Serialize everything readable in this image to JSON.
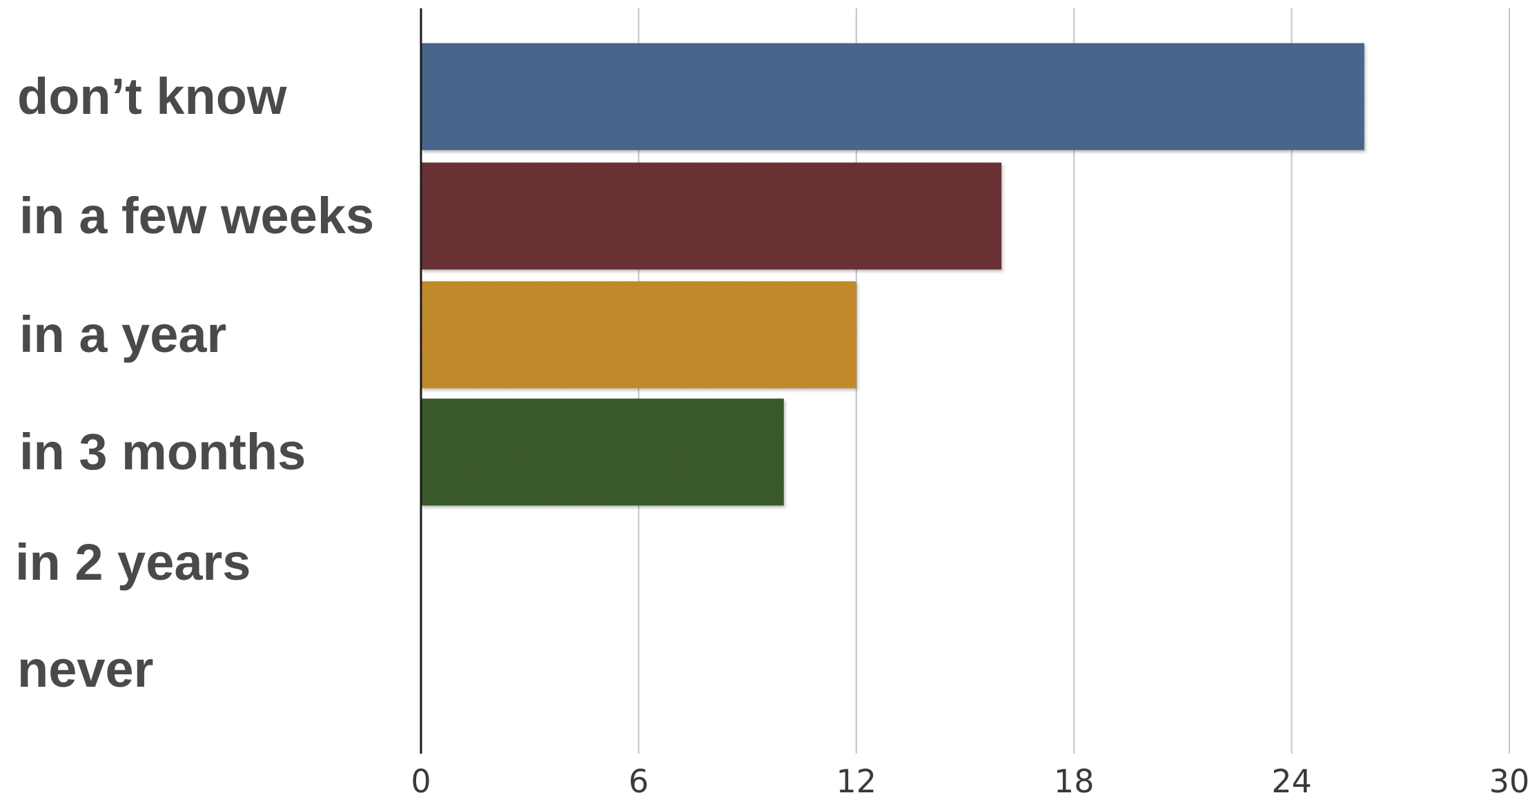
{
  "chart_data": {
    "type": "bar",
    "orientation": "horizontal",
    "title": "",
    "xlabel": "",
    "ylabel": "",
    "categories": [
      "don’t know",
      "in a few weeks",
      "in a year",
      "in 3 months",
      "in 2 years",
      "never"
    ],
    "values": [
      26,
      16,
      12,
      10,
      0,
      0
    ],
    "colors": [
      "#4d6a92",
      "#6e3538",
      "#c9902d",
      "#3d5e2f",
      "#888888",
      "#888888"
    ],
    "xlim": [
      0,
      30
    ],
    "xticks": [
      "0",
      "6",
      "12",
      "18",
      "24",
      "30"
    ],
    "xtick_values": [
      0,
      6,
      12,
      18,
      24,
      30
    ],
    "grid": "vertical",
    "legend": "none"
  }
}
